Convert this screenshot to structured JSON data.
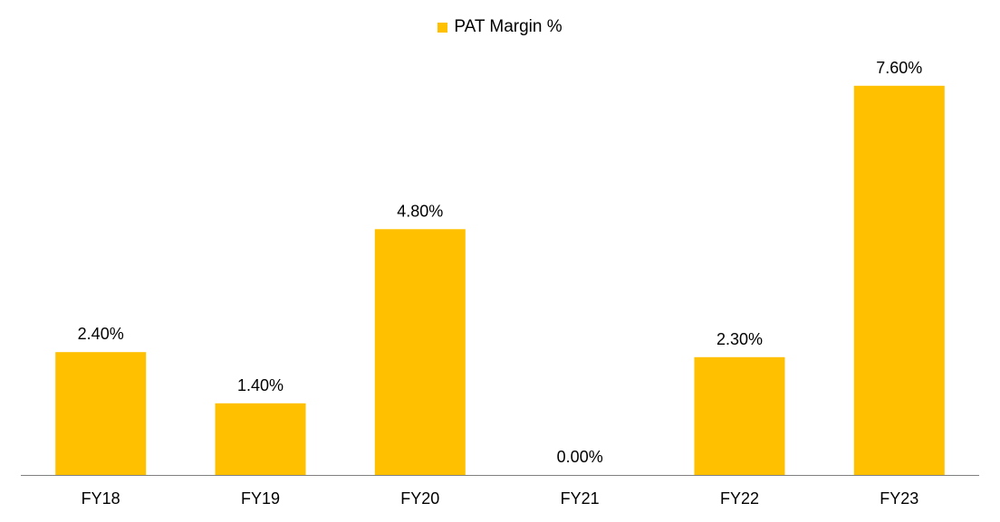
{
  "chart_data": {
    "type": "bar",
    "title": "",
    "xlabel": "",
    "ylabel": "",
    "categories": [
      "FY18",
      "FY19",
      "FY20",
      "FY21",
      "FY22",
      "FY23"
    ],
    "series": [
      {
        "name": "PAT Margin %",
        "values": [
          2.4,
          1.4,
          4.8,
          0.0,
          2.3,
          7.6
        ],
        "labels": [
          "2.40%",
          "1.40%",
          "4.80%",
          "0.00%",
          "2.30%",
          "7.60%"
        ],
        "color": "#FFC000"
      }
    ],
    "ylim": [
      0,
      8
    ],
    "grid": false,
    "legend_position": "top-center",
    "axis_color": "#808080"
  }
}
